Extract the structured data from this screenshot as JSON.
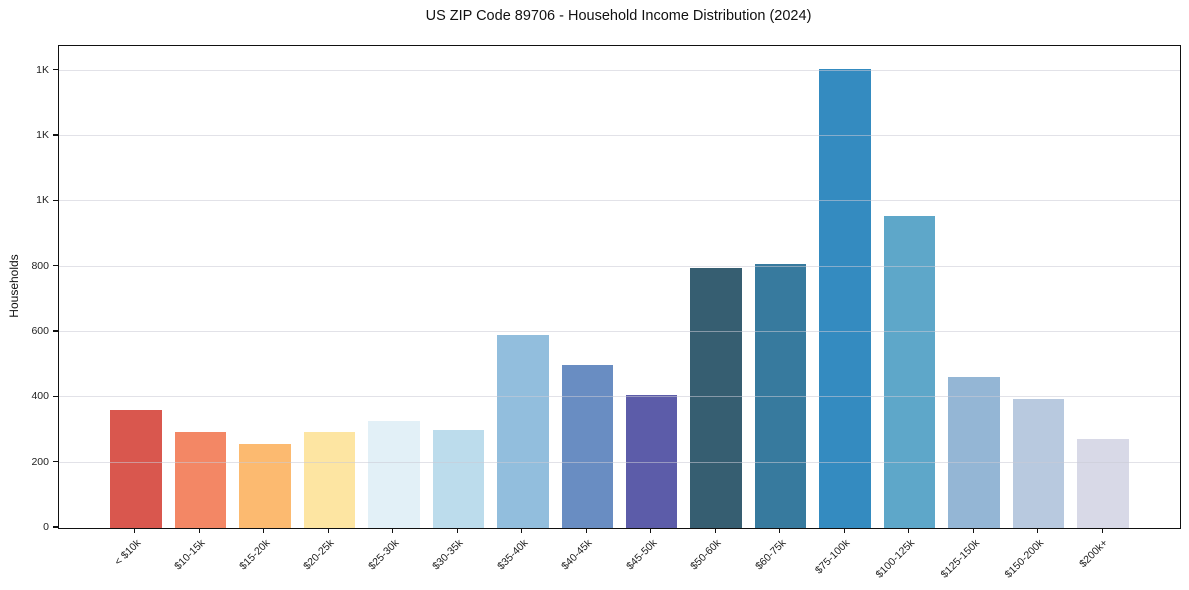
{
  "chart_data": {
    "type": "bar",
    "title": "US ZIP Code 89706 - Household Income Distribution (2024)",
    "ylabel": "Households",
    "xlabel": "",
    "categories": [
      "< $10k",
      "$10-15k",
      "$15-20k",
      "$20-25k",
      "$25-30k",
      "$30-35k",
      "$35-40k",
      "$40-45k",
      "$45-50k",
      "$50-60k",
      "$60-75k",
      "$75-100k",
      "$100-125k",
      "$125-150k",
      "$150-200k",
      "$200k+"
    ],
    "values": [
      360,
      294,
      257,
      295,
      328,
      300,
      590,
      498,
      408,
      795,
      808,
      1404,
      956,
      462,
      396,
      273
    ],
    "bar_colors": [
      "#d9574e",
      "#f38765",
      "#fcba70",
      "#fde5a2",
      "#e2f0f7",
      "#bcdcec",
      "#92bedd",
      "#698dc2",
      "#5c5ca9",
      "#365e71",
      "#377a9e",
      "#348bc0",
      "#5ea7c9",
      "#94b6d5",
      "#b8c9df",
      "#d8d9e7"
    ],
    "ylim": [
      0,
      1475
    ],
    "yticks": {
      "values": [
        0,
        200,
        400,
        600,
        800,
        1000,
        1200,
        1400
      ],
      "labels": [
        "0",
        "200",
        "400",
        "600",
        "800",
        "1K",
        "1K",
        "1K"
      ]
    },
    "grid": "horizontal",
    "legend": "none",
    "x_tick_rotation_deg": 45,
    "background_color": "#ffffff",
    "spine_color": "#111111"
  }
}
